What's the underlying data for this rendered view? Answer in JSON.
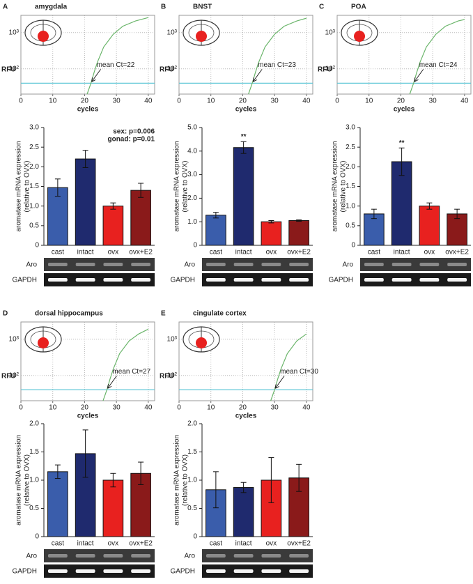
{
  "chart_data": [
    {
      "type": "line",
      "panel": "A",
      "title": "amygdala",
      "xlabel": "cycles",
      "ylabel": "RFU",
      "log_y": true,
      "grid": true,
      "xlim": [
        0,
        42
      ],
      "xticks": [
        0,
        10,
        20,
        30,
        40
      ],
      "ylim": [
        20,
        3000
      ],
      "yticks": [
        {
          "value": 100,
          "label": "10²"
        },
        {
          "value": 1000,
          "label": "10³"
        }
      ],
      "x": [
        20.8,
        22,
        23,
        24,
        26,
        29,
        32,
        36,
        40
      ],
      "values": [
        20,
        40,
        80,
        150,
        400,
        900,
        1500,
        2100,
        2600
      ],
      "color": "#6ab56a",
      "threshold": 40,
      "threshold_color": "#5cc6d6",
      "annotation": "mean Ct=22"
    },
    {
      "type": "bar",
      "categories": [
        "cast",
        "intact",
        "ovx",
        "ovx+E2"
      ],
      "ylabel": [
        "aromatase mRNA expression",
        "(relative to OVX)"
      ],
      "ylim": [
        0,
        3.0
      ],
      "yticks": [
        0,
        0.5,
        {
          "value": 1.0,
          "label": "1.0"
        },
        1.5,
        {
          "value": 2.0,
          "label": "2.0"
        },
        2.5,
        {
          "value": 3.0,
          "label": "3.0"
        }
      ],
      "values": [
        1.47,
        2.2,
        1.0,
        1.4
      ],
      "errors": [
        0.22,
        0.22,
        0.08,
        0.18
      ],
      "colors": [
        "#3a5dab",
        "#1f2a6e",
        "#e8211f",
        "#8a1a1a"
      ],
      "markers": [
        null,
        null,
        null,
        null
      ],
      "annotations": [
        "sex: p=0.006",
        "gonad: p=0.01"
      ],
      "gel_rows": [
        "Aro",
        "GAPDH"
      ]
    },
    {
      "type": "line",
      "panel": "B",
      "title": "BNST",
      "xlabel": "cycles",
      "ylabel": "RFU",
      "log_y": true,
      "grid": true,
      "xlim": [
        0,
        42
      ],
      "xticks": [
        0,
        10,
        20,
        30,
        40
      ],
      "ylim": [
        20,
        3000
      ],
      "yticks": [
        {
          "value": 100,
          "label": "10²"
        },
        {
          "value": 1000,
          "label": "10³"
        }
      ],
      "x": [
        21.8,
        23,
        24,
        25,
        27,
        30,
        33,
        37,
        40
      ],
      "values": [
        20,
        40,
        80,
        150,
        400,
        900,
        1500,
        2100,
        2500
      ],
      "color": "#6ab56a",
      "threshold": 40,
      "threshold_color": "#5cc6d6",
      "annotation": "mean Ct=23"
    },
    {
      "type": "bar",
      "categories": [
        "cast",
        "intact",
        "ovx",
        "ovx+E2"
      ],
      "ylabel": [
        "aromatase mRNA expression",
        "(relative to OVX)"
      ],
      "ylim": [
        0,
        5.0
      ],
      "yticks": [
        0,
        {
          "value": 1.0,
          "label": "1.0"
        },
        {
          "value": 2.0,
          "label": "2.0"
        },
        {
          "value": 3.0,
          "label": "3.0"
        },
        {
          "value": 4.0,
          "label": "4.0"
        },
        {
          "value": 5.0,
          "label": "5.0"
        }
      ],
      "values": [
        1.28,
        4.15,
        1.0,
        1.05
      ],
      "errors": [
        0.12,
        0.25,
        0.05,
        0.03
      ],
      "colors": [
        "#3a5dab",
        "#1f2a6e",
        "#e8211f",
        "#8a1a1a"
      ],
      "markers": [
        null,
        "**",
        null,
        null
      ],
      "annotations": [],
      "gel_rows": [
        "Aro",
        "GAPDH"
      ]
    },
    {
      "type": "line",
      "panel": "C",
      "title": "POA",
      "xlabel": "cycles",
      "ylabel": "RFU",
      "log_y": true,
      "grid": true,
      "xlim": [
        0,
        42
      ],
      "xticks": [
        0,
        10,
        20,
        30,
        40
      ],
      "ylim": [
        20,
        3000
      ],
      "yticks": [
        {
          "value": 100,
          "label": "10²"
        },
        {
          "value": 1000,
          "label": "10³"
        }
      ],
      "x": [
        22.8,
        24,
        25,
        26,
        28,
        31,
        34,
        38,
        40
      ],
      "values": [
        20,
        40,
        80,
        150,
        400,
        900,
        1500,
        2100,
        2300
      ],
      "color": "#6ab56a",
      "threshold": 40,
      "threshold_color": "#5cc6d6",
      "annotation": "mean Ct=24"
    },
    {
      "type": "bar",
      "categories": [
        "cast",
        "intact",
        "ovx",
        "ovx+E2"
      ],
      "ylabel": [
        "aromatase mRNA expression",
        "(relative to OVX)"
      ],
      "ylim": [
        0,
        3.0
      ],
      "yticks": [
        0,
        0.5,
        {
          "value": 1.0,
          "label": "1.0"
        },
        1.5,
        {
          "value": 2.0,
          "label": "2.0"
        },
        2.5,
        {
          "value": 3.0,
          "label": "3.0"
        }
      ],
      "values": [
        0.8,
        2.13,
        1.0,
        0.8
      ],
      "errors": [
        0.12,
        0.35,
        0.08,
        0.12
      ],
      "colors": [
        "#3a5dab",
        "#1f2a6e",
        "#e8211f",
        "#8a1a1a"
      ],
      "markers": [
        null,
        "**",
        null,
        null
      ],
      "annotations": [],
      "gel_rows": [
        "Aro",
        "GAPDH"
      ]
    },
    {
      "type": "line",
      "panel": "D",
      "title": "dorsal hippocampus",
      "xlabel": "cycles",
      "ylabel": "RFU",
      "log_y": true,
      "grid": true,
      "xlim": [
        0,
        42
      ],
      "xticks": [
        0,
        10,
        20,
        30,
        40
      ],
      "ylim": [
        20,
        3000
      ],
      "yticks": [
        {
          "value": 100,
          "label": "10²"
        },
        {
          "value": 1000,
          "label": "10³"
        }
      ],
      "x": [
        25.8,
        27,
        28,
        29,
        31,
        34,
        37,
        40
      ],
      "values": [
        20,
        40,
        80,
        150,
        400,
        900,
        1400,
        1900
      ],
      "color": "#6ab56a",
      "threshold": 40,
      "threshold_color": "#5cc6d6",
      "annotation": "mean Ct=27"
    },
    {
      "type": "bar",
      "categories": [
        "cast",
        "intact",
        "ovx",
        "ovx+E2"
      ],
      "ylabel": [
        "aromatase mRNA expression",
        "(relative to OVX)"
      ],
      "ylim": [
        0,
        2.0
      ],
      "yticks": [
        0,
        0.5,
        {
          "value": 1.0,
          "label": "1.0"
        },
        1.5,
        {
          "value": 2.0,
          "label": "2.0"
        }
      ],
      "values": [
        1.15,
        1.47,
        1.0,
        1.12
      ],
      "errors": [
        0.12,
        0.42,
        0.12,
        0.2
      ],
      "colors": [
        "#3a5dab",
        "#1f2a6e",
        "#e8211f",
        "#8a1a1a"
      ],
      "markers": [
        null,
        null,
        null,
        null
      ],
      "annotations": [],
      "gel_rows": [
        "Aro",
        "GAPDH"
      ]
    },
    {
      "type": "line",
      "panel": "E",
      "title": "cingulate cortex",
      "xlabel": "cycles",
      "ylabel": "RFU",
      "log_y": true,
      "grid": true,
      "xlim": [
        0,
        42
      ],
      "xticks": [
        0,
        10,
        20,
        30,
        40
      ],
      "ylim": [
        20,
        3000
      ],
      "yticks": [
        {
          "value": 100,
          "label": "10²"
        },
        {
          "value": 1000,
          "label": "10³"
        }
      ],
      "x": [
        28.8,
        30,
        31,
        32,
        34,
        37,
        40
      ],
      "values": [
        20,
        40,
        80,
        150,
        400,
        900,
        1400
      ],
      "color": "#6ab56a",
      "threshold": 40,
      "threshold_color": "#5cc6d6",
      "annotation": "mean Ct=30"
    },
    {
      "type": "bar",
      "categories": [
        "cast",
        "intact",
        "ovx",
        "ovx+E2"
      ],
      "ylabel": [
        "aromatase mRNA expression",
        "(relative to OVX)"
      ],
      "ylim": [
        0,
        2.0
      ],
      "yticks": [
        0,
        0.5,
        {
          "value": 1.0,
          "label": "1.0"
        },
        1.5,
        {
          "value": 2.0,
          "label": "2.0"
        }
      ],
      "values": [
        0.83,
        0.87,
        1.0,
        1.04
      ],
      "errors": [
        0.32,
        0.09,
        0.4,
        0.24
      ],
      "colors": [
        "#3a5dab",
        "#1f2a6e",
        "#e8211f",
        "#8a1a1a"
      ],
      "markers": [
        null,
        null,
        null,
        null
      ],
      "annotations": [],
      "gel_rows": [
        "Aro",
        "GAPDH"
      ]
    }
  ]
}
